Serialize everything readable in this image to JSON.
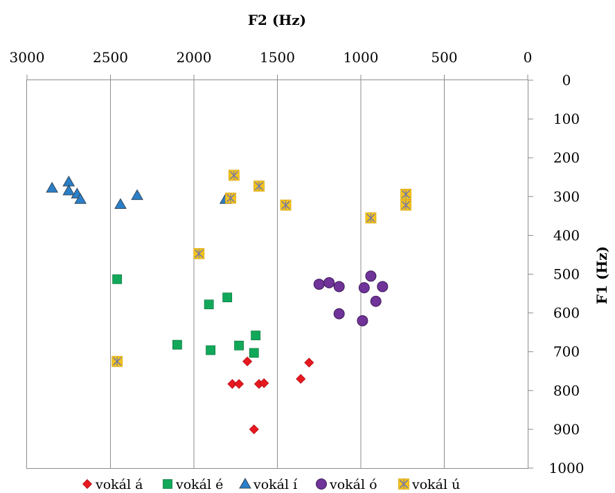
{
  "chart_data": {
    "type": "scatter",
    "xlabel": "F2 (Hz)",
    "ylabel": "F1 (Hz)",
    "xlim": [
      3000,
      0
    ],
    "ylim": [
      0,
      1000
    ],
    "x_reversed": true,
    "y_reversed": true,
    "x_ticks": [
      3000,
      2500,
      2000,
      1500,
      1000,
      500,
      0
    ],
    "y_ticks": [
      0,
      100,
      200,
      300,
      400,
      500,
      600,
      700,
      800,
      900,
      1000
    ],
    "grid": false,
    "legend_position": "bottom",
    "series": [
      {
        "name": "vokál á",
        "marker": "diamond",
        "color": "#e8181f",
        "points": [
          [
            1680,
            725
          ],
          [
            1310,
            728
          ],
          [
            1360,
            770
          ],
          [
            1770,
            783
          ],
          [
            1730,
            783
          ],
          [
            1610,
            783
          ],
          [
            1580,
            781
          ],
          [
            1640,
            900
          ]
        ]
      },
      {
        "name": "vokál é",
        "marker": "square",
        "color": "#12a85a",
        "points": [
          [
            2460,
            513
          ],
          [
            1800,
            560
          ],
          [
            1910,
            578
          ],
          [
            2100,
            682
          ],
          [
            1900,
            696
          ],
          [
            1730,
            684
          ],
          [
            1630,
            658
          ],
          [
            1640,
            703
          ]
        ]
      },
      {
        "name": "vokál í",
        "marker": "triangle",
        "color": "#2a7fc8",
        "points": [
          [
            2850,
            278
          ],
          [
            2750,
            262
          ],
          [
            2750,
            285
          ],
          [
            2700,
            293
          ],
          [
            2680,
            307
          ],
          [
            2440,
            320
          ],
          [
            2340,
            297
          ],
          [
            1810,
            307
          ]
        ]
      },
      {
        "name": "vokál ó",
        "marker": "circle",
        "color": "#6f3399",
        "points": [
          [
            1250,
            526
          ],
          [
            1190,
            522
          ],
          [
            1130,
            532
          ],
          [
            940,
            505
          ],
          [
            980,
            535
          ],
          [
            870,
            532
          ],
          [
            910,
            570
          ],
          [
            1130,
            602
          ],
          [
            990,
            620
          ]
        ]
      },
      {
        "name": "vokál ú",
        "marker": "xsquare",
        "color": "#f3c41c",
        "points": [
          [
            1760,
            245
          ],
          [
            1610,
            273
          ],
          [
            1780,
            304
          ],
          [
            1450,
            322
          ],
          [
            940,
            355
          ],
          [
            730,
            294
          ],
          [
            730,
            322
          ],
          [
            1970,
            447
          ],
          [
            2460,
            725
          ]
        ]
      }
    ]
  }
}
